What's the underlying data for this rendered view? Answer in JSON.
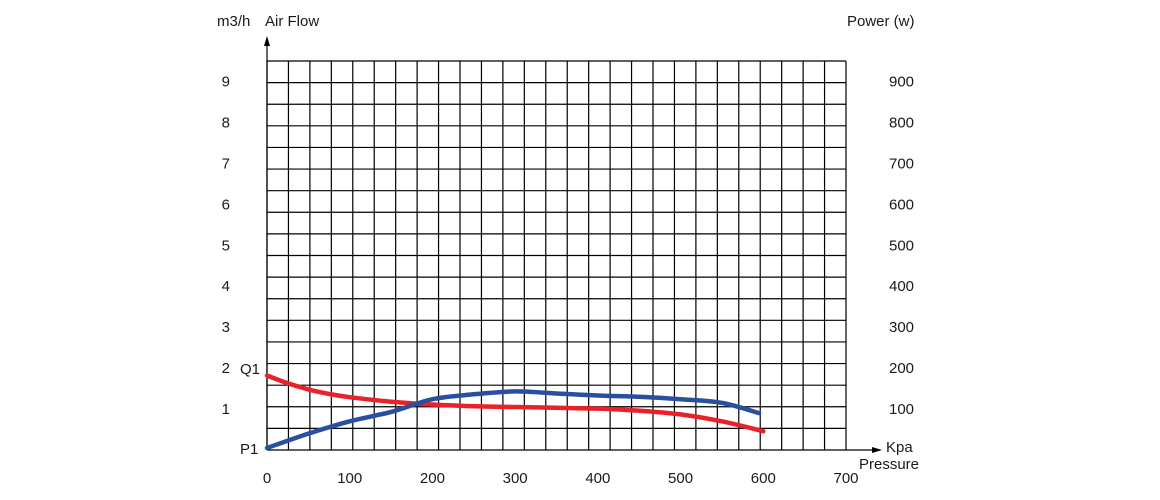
{
  "chart_data": {
    "type": "line",
    "left_axis": {
      "unit": "m3/h",
      "label": "Air Flow",
      "ticks": [
        "1",
        "2",
        "3",
        "4",
        "5",
        "6",
        "7",
        "8",
        "9"
      ],
      "range": [
        0,
        9.5
      ]
    },
    "right_axis": {
      "label": "Power (w)",
      "ticks": [
        "100",
        "200",
        "300",
        "400",
        "500",
        "600",
        "700",
        "800",
        "900"
      ],
      "range": [
        0,
        950
      ]
    },
    "x_axis": {
      "unit": "Kpa",
      "label": "Pressure",
      "ticks": [
        "0",
        "100",
        "200",
        "300",
        "400",
        "500",
        "600",
        "700"
      ],
      "range": [
        0,
        700
      ]
    },
    "grid": true,
    "series": [
      {
        "name": "Q1",
        "axis": "left",
        "color": "#e8212a",
        "x": [
          0,
          25,
          50,
          75,
          100,
          150,
          200,
          250,
          300,
          350,
          400,
          450,
          500,
          550,
          600
        ],
        "y": [
          1.82,
          1.63,
          1.48,
          1.37,
          1.29,
          1.18,
          1.11,
          1.07,
          1.05,
          1.03,
          1.01,
          0.96,
          0.87,
          0.7,
          0.46
        ]
      },
      {
        "name": "P1",
        "axis": "right",
        "color": "#2a4fa0",
        "x": [
          0,
          50,
          100,
          150,
          200,
          250,
          300,
          350,
          400,
          450,
          500,
          550,
          595
        ],
        "y": [
          5,
          40,
          70,
          93,
          124,
          136,
          143,
          138,
          133,
          130,
          124,
          115,
          90
        ]
      }
    ]
  }
}
